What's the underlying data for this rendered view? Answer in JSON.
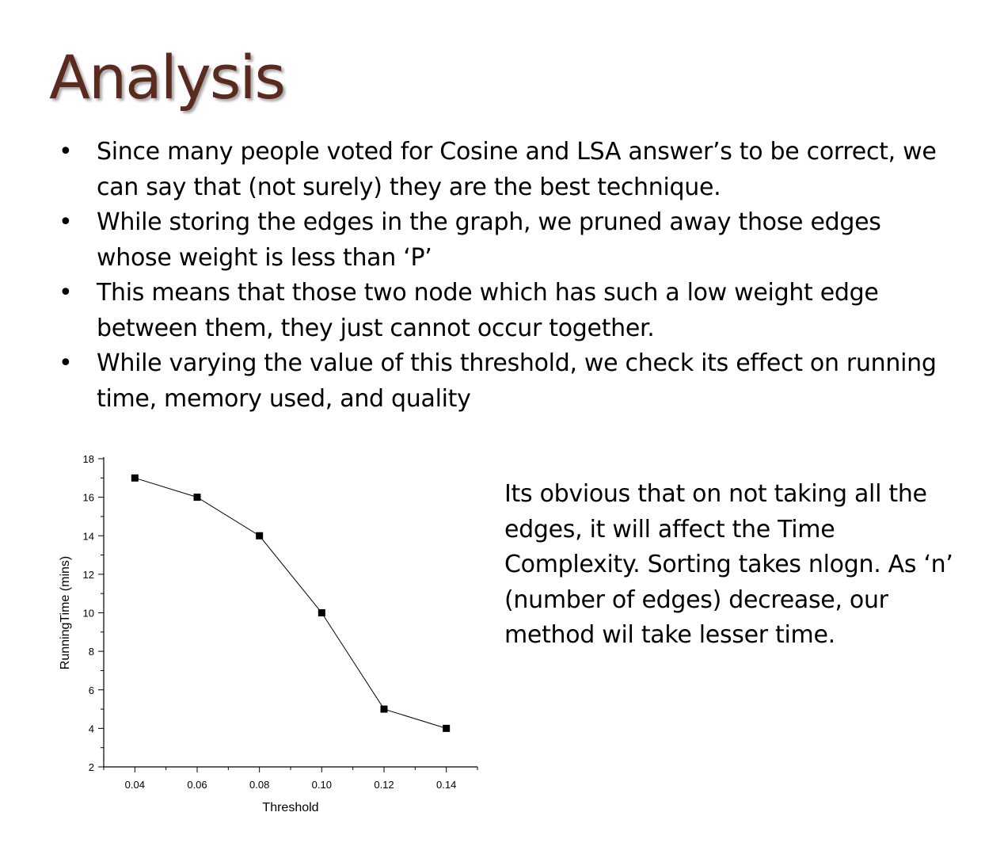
{
  "slide": {
    "title": "Analysis",
    "bullets": [
      "Since many people voted for Cosine and LSA answer’s to be correct, we can say that (not surely) they are the best technique.",
      "While storing the edges in the graph, we pruned away those edges whose weight is less than ‘P’",
      "This means that those two node which has such a low weight edge between them, they just cannot occur together.",
      "While varying the value of this threshold, we check its effect on running time, memory used, and quality"
    ],
    "bullet_symbol": "•",
    "side_text": "Its obvious that on not taking all the edges, it will affect the Time Complexity. Sorting takes nlogn. As ‘n’ (number of edges) decrease, our method wil take lesser time.",
    "colors": {
      "title": "#5a2a1f"
    }
  },
  "chart_data": {
    "type": "line",
    "x": [
      0.04,
      0.06,
      0.08,
      0.1,
      0.12,
      0.14
    ],
    "x_tick_labels": [
      "0.04",
      "0.06",
      "0.08",
      "0.10",
      "0.12",
      "0.14"
    ],
    "y_ticks": [
      2,
      4,
      6,
      8,
      10,
      12,
      14,
      16,
      18
    ],
    "y_tick_labels": [
      "2",
      "4",
      "6",
      "8",
      "10",
      "12",
      "14",
      "16",
      "18"
    ],
    "series": [
      {
        "values": [
          17,
          16,
          14,
          10,
          5,
          4
        ]
      }
    ],
    "xlabel": "Threshold",
    "ylabel": "RunningTime (mins)",
    "xlim": [
      0.03,
      0.15
    ],
    "ylim": [
      2,
      18
    ],
    "marker": "square",
    "grid": false,
    "legend": false
  }
}
